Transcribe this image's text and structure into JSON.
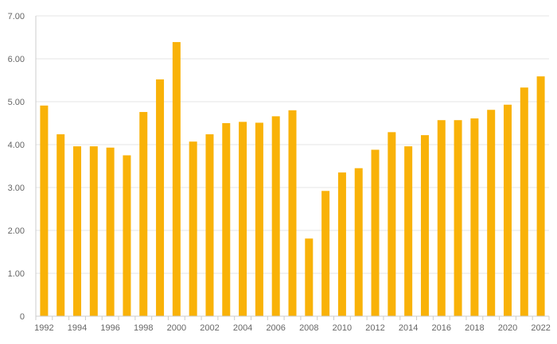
{
  "chart_data": {
    "type": "bar",
    "title": "",
    "xlabel": "",
    "ylabel": "",
    "bar_color": "#f9b208",
    "grid": true,
    "ylim": [
      0,
      7
    ],
    "y_ticks": [
      0,
      1,
      2,
      3,
      4,
      5,
      6,
      7
    ],
    "y_tick_labels": [
      "0",
      "1.00",
      "2.00",
      "3.00",
      "4.00",
      "5.00",
      "6.00",
      "7.00"
    ],
    "categories": [
      "1992",
      "1993",
      "1994",
      "1995",
      "1996",
      "1997",
      "1998",
      "1999",
      "2000",
      "2001",
      "2002",
      "2003",
      "2004",
      "2005",
      "2006",
      "2007",
      "2008",
      "2009",
      "2010",
      "2011",
      "2012",
      "2013",
      "2014",
      "2015",
      "2016",
      "2017",
      "2018",
      "2019",
      "2020",
      "2021",
      "2022"
    ],
    "x_tick_labels": [
      "1992",
      "1994",
      "1996",
      "1998",
      "2000",
      "2002",
      "2004",
      "2006",
      "2008",
      "2010",
      "2012",
      "2014",
      "2016",
      "2018",
      "2020",
      "2022"
    ],
    "values": [
      4.91,
      4.24,
      3.96,
      3.96,
      3.93,
      3.75,
      4.76,
      5.52,
      6.39,
      4.07,
      4.24,
      4.5,
      4.53,
      4.51,
      4.66,
      4.8,
      1.81,
      2.92,
      3.35,
      3.45,
      3.88,
      4.29,
      3.96,
      4.22,
      4.57,
      4.57,
      4.61,
      4.81,
      4.93,
      5.33,
      5.59
    ]
  }
}
